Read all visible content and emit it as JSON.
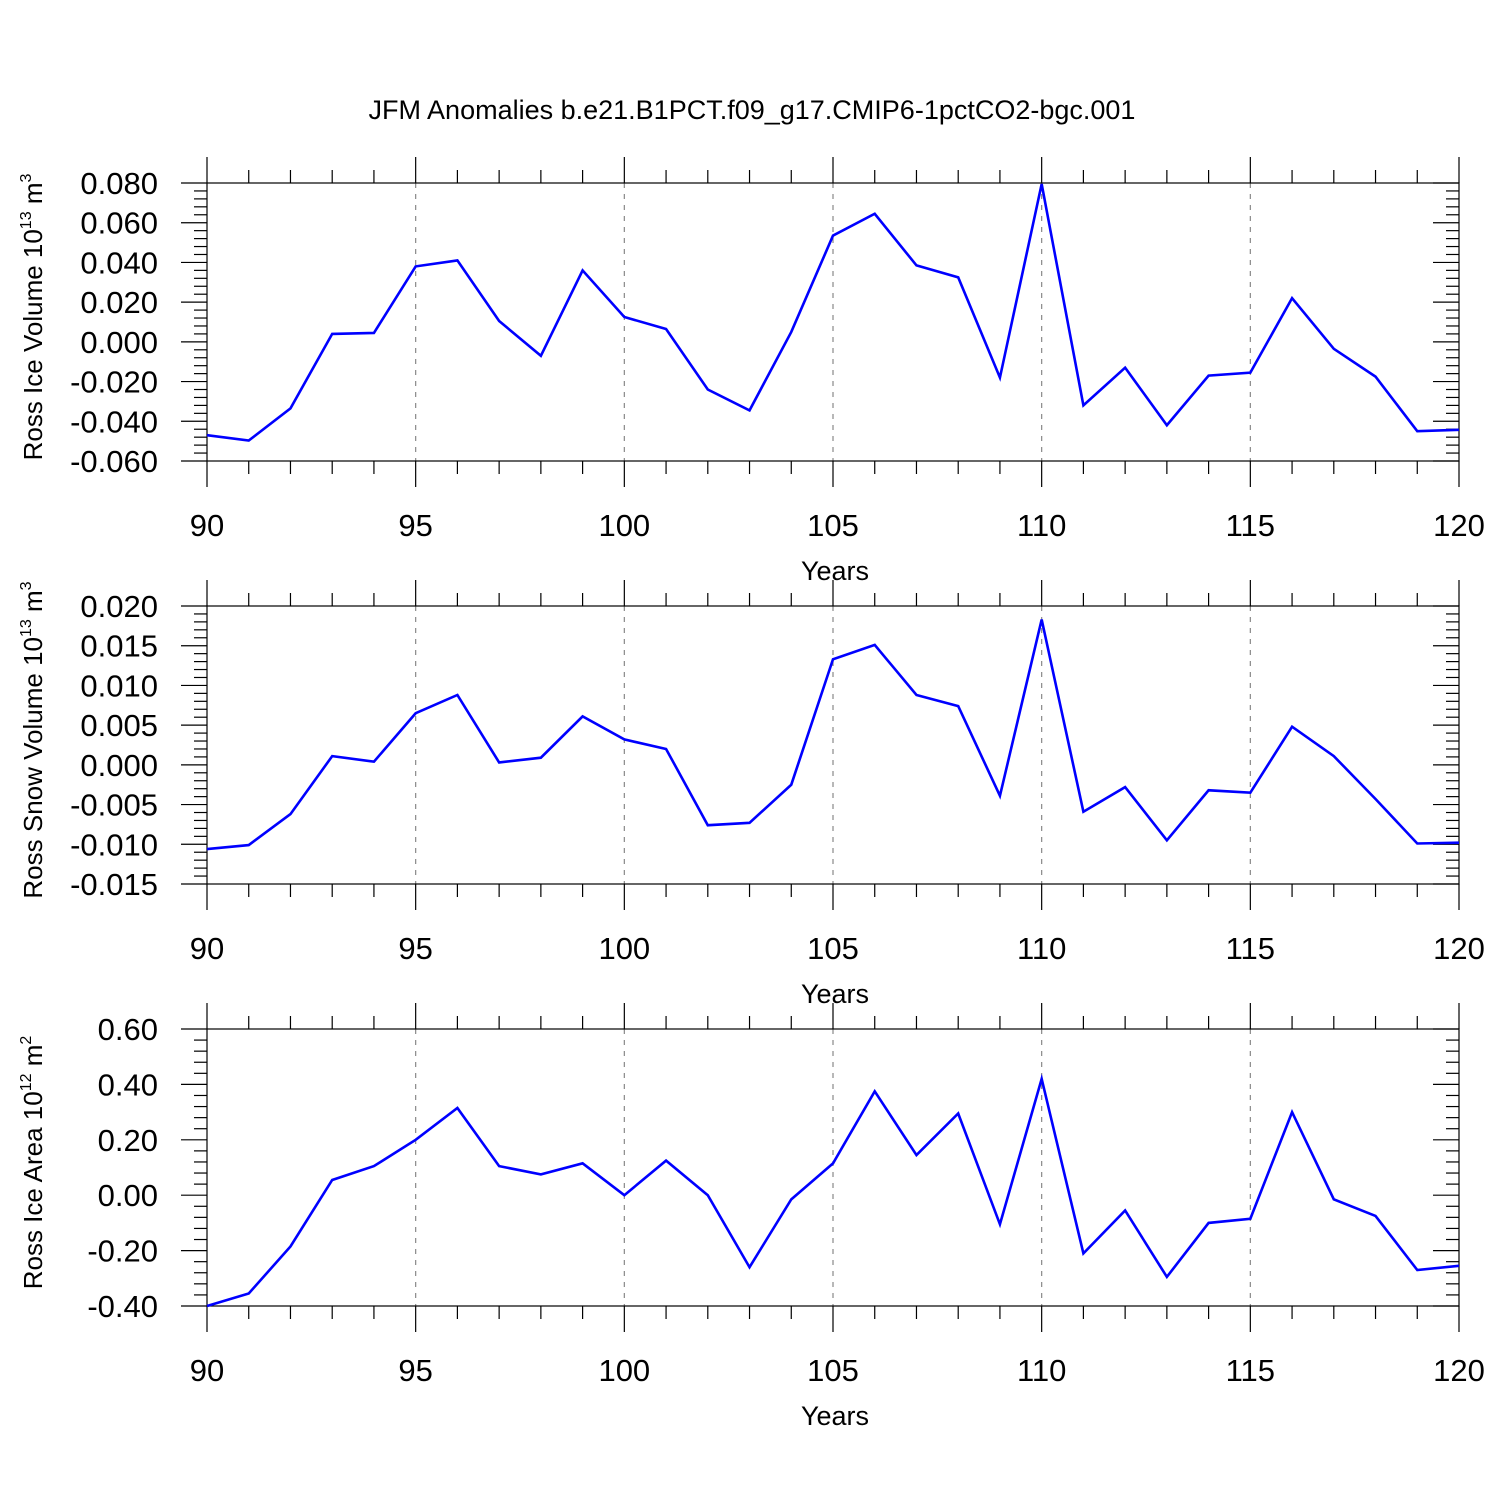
{
  "title": "JFM Anomalies b.e21.B1PCT.f09_g17.CMIP6-1pctCO2-bgc.001",
  "chart_data": [
    {
      "type": "line",
      "ylabel": {
        "main": "Ross Ice Volume 10",
        "exp": "13",
        "unit": " m",
        "unit_exp": "3"
      },
      "xlabel": "Years",
      "xlim": [
        90,
        120
      ],
      "ylim": [
        -0.06,
        0.08
      ],
      "xticks": [
        90,
        95,
        100,
        105,
        110,
        115,
        120
      ],
      "yticks": [
        -0.06,
        -0.04,
        -0.02,
        0.0,
        0.02,
        0.04,
        0.06,
        0.08
      ],
      "ytick_labels": [
        "-0.060",
        "-0.040",
        "-0.020",
        "0.000",
        "0.020",
        "0.040",
        "0.060",
        "0.080"
      ],
      "grid": "dashed vertical at major x ticks",
      "x": [
        90,
        91,
        92,
        93,
        94,
        95,
        96,
        97,
        98,
        99,
        100,
        101,
        102,
        103,
        104,
        105,
        106,
        107,
        108,
        109,
        110,
        111,
        112,
        113,
        114,
        115,
        116,
        117,
        118,
        119,
        120
      ],
      "series": [
        {
          "name": "Ross Ice Volume",
          "color": "#0000ff",
          "values": [
            -0.047,
            -0.0497,
            -0.0335,
            0.004,
            0.0045,
            0.038,
            0.041,
            0.0105,
            -0.007,
            0.036,
            0.0125,
            0.0065,
            -0.024,
            -0.0345,
            0.005,
            0.0535,
            0.0645,
            0.0385,
            0.0325,
            -0.018,
            0.0795,
            -0.032,
            -0.013,
            -0.042,
            -0.017,
            -0.0155,
            0.022,
            -0.0035,
            -0.0175,
            -0.045,
            -0.0443
          ]
        }
      ]
    },
    {
      "type": "line",
      "ylabel": {
        "main": "Ross Snow Volume 10",
        "exp": "13",
        "unit": " m",
        "unit_exp": "3"
      },
      "xlabel": "Years",
      "xlim": [
        90,
        120
      ],
      "ylim": [
        -0.015,
        0.02
      ],
      "xticks": [
        90,
        95,
        100,
        105,
        110,
        115,
        120
      ],
      "yticks": [
        -0.015,
        -0.01,
        -0.005,
        0.0,
        0.005,
        0.01,
        0.015,
        0.02
      ],
      "ytick_labels": [
        "-0.015",
        "-0.010",
        "-0.005",
        "0.000",
        "0.005",
        "0.010",
        "0.015",
        "0.020"
      ],
      "grid": "dashed vertical at major x ticks",
      "x": [
        90,
        91,
        92,
        93,
        94,
        95,
        96,
        97,
        98,
        99,
        100,
        101,
        102,
        103,
        104,
        105,
        106,
        107,
        108,
        109,
        110,
        111,
        112,
        113,
        114,
        115,
        116,
        117,
        118,
        119,
        120
      ],
      "series": [
        {
          "name": "Ross Snow Volume",
          "color": "#0000ff",
          "values": [
            -0.0106,
            -0.0101,
            -0.0062,
            0.0011,
            0.0004,
            0.0065,
            0.0088,
            0.0003,
            0.0009,
            0.0061,
            0.0032,
            0.002,
            -0.0076,
            -0.0073,
            -0.0025,
            0.0133,
            0.0151,
            0.0088,
            0.0074,
            -0.0039,
            0.0183,
            -0.0059,
            -0.0028,
            -0.0095,
            -0.0032,
            -0.0035,
            0.0048,
            0.0011,
            -0.0043,
            -0.0099,
            -0.0098
          ]
        }
      ]
    },
    {
      "type": "line",
      "ylabel": {
        "main": "Ross Ice Area 10",
        "exp": "12",
        "unit": " m",
        "unit_exp": "2"
      },
      "xlabel": "Years",
      "xlim": [
        90,
        120
      ],
      "ylim": [
        -0.4,
        0.6
      ],
      "xticks": [
        90,
        95,
        100,
        105,
        110,
        115,
        120
      ],
      "yticks": [
        -0.4,
        -0.2,
        0.0,
        0.2,
        0.4,
        0.6
      ],
      "ytick_labels": [
        "-0.40",
        "-0.20",
        "0.00",
        "0.20",
        "0.40",
        "0.60"
      ],
      "grid": "dashed vertical at major x ticks",
      "x": [
        90,
        91,
        92,
        93,
        94,
        95,
        96,
        97,
        98,
        99,
        100,
        101,
        102,
        103,
        104,
        105,
        106,
        107,
        108,
        109,
        110,
        111,
        112,
        113,
        114,
        115,
        116,
        117,
        118,
        119,
        120
      ],
      "series": [
        {
          "name": "Ross Ice Area",
          "color": "#0000ff",
          "values": [
            -0.4,
            -0.355,
            -0.185,
            0.055,
            0.105,
            0.2,
            0.315,
            0.105,
            0.075,
            0.115,
            0.0,
            0.125,
            0.0,
            -0.26,
            -0.015,
            0.115,
            0.375,
            0.145,
            0.295,
            -0.105,
            0.42,
            -0.21,
            -0.055,
            -0.295,
            -0.1,
            -0.085,
            0.3,
            -0.015,
            -0.075,
            -0.27,
            -0.255
          ]
        }
      ]
    }
  ]
}
